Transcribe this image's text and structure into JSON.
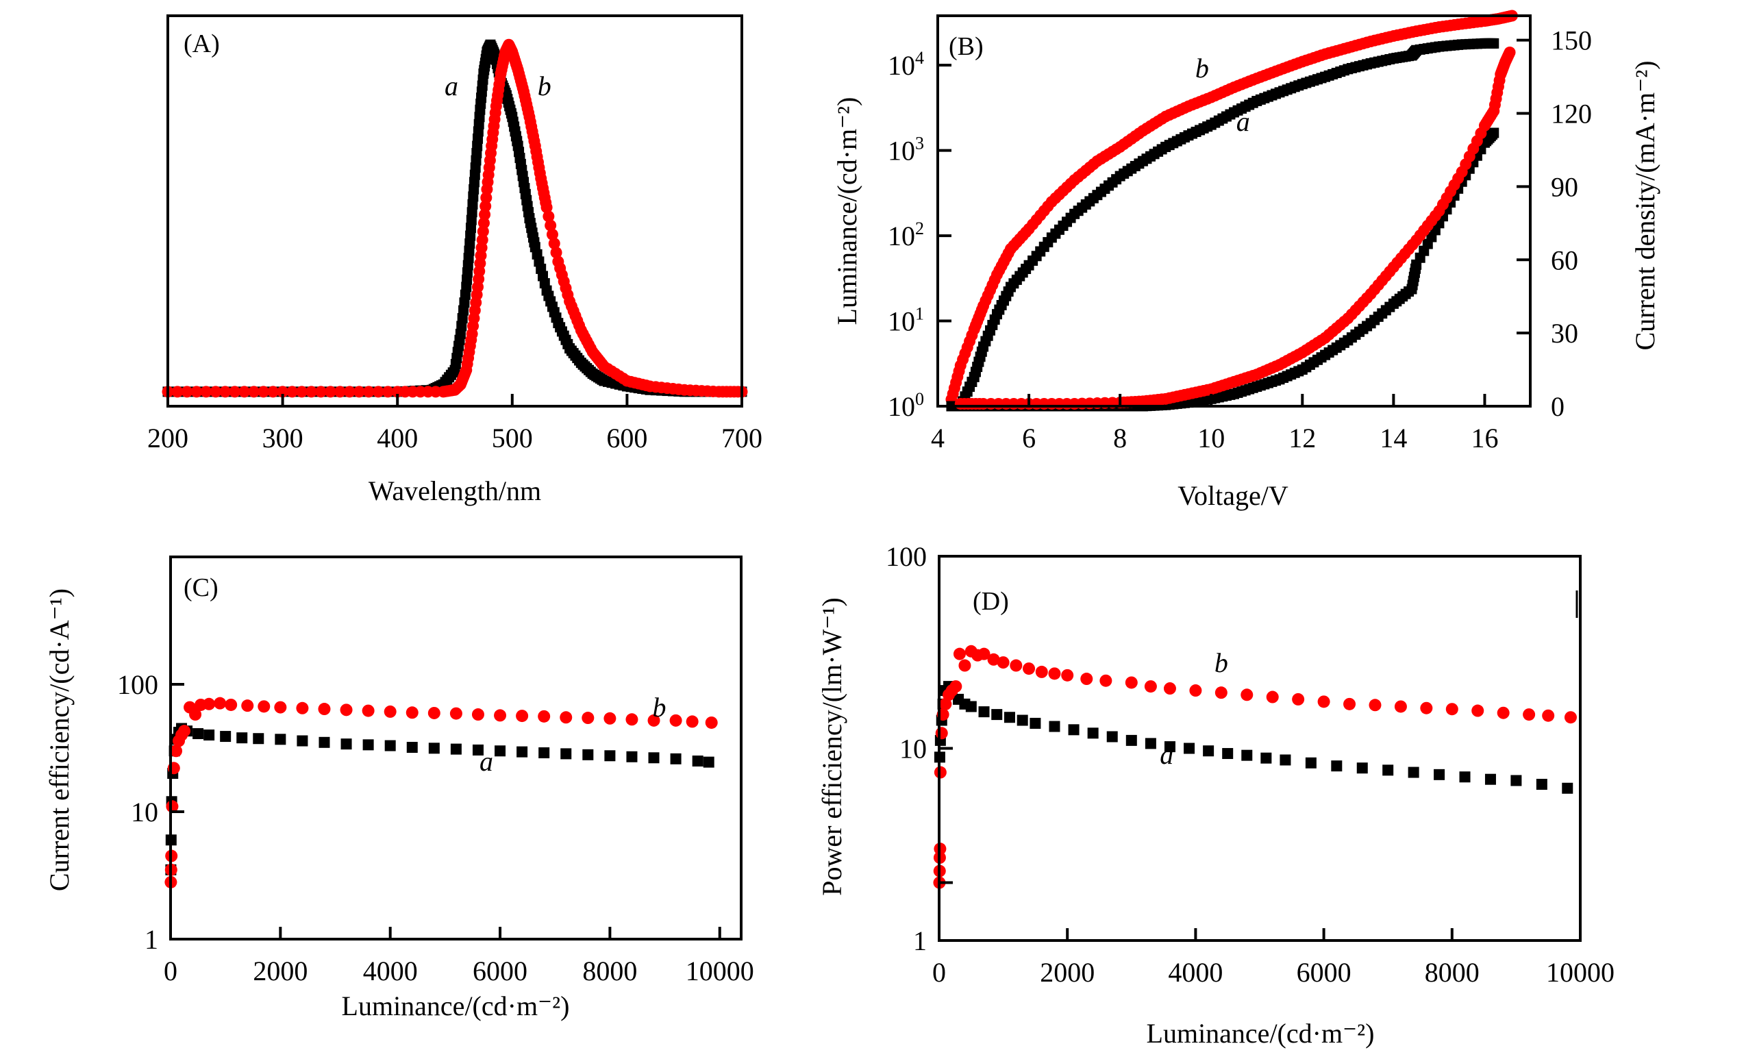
{
  "colors": {
    "series_a": "#000000",
    "series_b": "#ff0000",
    "axis": "#000000",
    "background": "#ffffff"
  },
  "chart_data": [
    {
      "id": "A",
      "type": "scatter",
      "panel_label": "(A)",
      "title": "",
      "xlabel": "Wavelength/nm",
      "ylabel": "",
      "xlim": [
        200,
        700
      ],
      "ylim": [
        0,
        1.08
      ],
      "yscale": "linear",
      "xticks": [
        200,
        300,
        400,
        500,
        600,
        700
      ],
      "xtick_labels": [
        "200",
        "300",
        "400",
        "500",
        "600",
        "700"
      ],
      "yticks": [],
      "grid": false,
      "legend": "none (inline labels)",
      "series": [
        {
          "name": "a",
          "marker": "square",
          "color": "#000000",
          "label_at": [
            447,
            0.86
          ],
          "x": [
            200,
            250,
            300,
            350,
            400,
            430,
            440,
            450,
            455,
            460,
            463,
            466,
            469,
            472,
            475,
            478,
            481,
            485,
            490,
            495,
            500,
            505,
            510,
            515,
            520,
            530,
            540,
            550,
            560,
            570,
            580,
            600,
            620,
            650,
            680,
            700
          ],
          "y": [
            0.04,
            0.04,
            0.04,
            0.04,
            0.04,
            0.045,
            0.06,
            0.1,
            0.2,
            0.33,
            0.45,
            0.58,
            0.7,
            0.82,
            0.92,
            0.98,
            1.0,
            0.97,
            0.9,
            0.86,
            0.8,
            0.72,
            0.62,
            0.52,
            0.44,
            0.32,
            0.23,
            0.16,
            0.12,
            0.09,
            0.07,
            0.055,
            0.045,
            0.04,
            0.04,
            0.04
          ]
        },
        {
          "name": "b",
          "marker": "circle",
          "color": "#ff0000",
          "label_at": [
            528,
            0.86
          ],
          "x": [
            200,
            250,
            300,
            350,
            400,
            440,
            450,
            455,
            460,
            465,
            470,
            474,
            478,
            482,
            486,
            490,
            494,
            497,
            500,
            505,
            510,
            515,
            520,
            525,
            530,
            540,
            550,
            560,
            570,
            580,
            600,
            620,
            650,
            680,
            700
          ],
          "y": [
            0.04,
            0.04,
            0.04,
            0.04,
            0.04,
            0.04,
            0.045,
            0.06,
            0.1,
            0.2,
            0.33,
            0.46,
            0.6,
            0.72,
            0.83,
            0.92,
            0.98,
            1.0,
            0.98,
            0.93,
            0.87,
            0.8,
            0.72,
            0.63,
            0.55,
            0.4,
            0.29,
            0.21,
            0.15,
            0.11,
            0.07,
            0.055,
            0.045,
            0.04,
            0.04
          ]
        }
      ]
    },
    {
      "id": "B",
      "type": "scatter",
      "panel_label": "(B)",
      "title": "",
      "xlabel": "Voltage/V",
      "ylabel": "Luminance/(cd·m⁻²)",
      "y2label": "Current density/(mA·m⁻²)",
      "xlim": [
        4,
        17
      ],
      "ylim": [
        1,
        38000
      ],
      "yscale": "log",
      "y2lim": [
        0,
        160
      ],
      "xticks": [
        4,
        6,
        8,
        10,
        12,
        14,
        16
      ],
      "xtick_labels": [
        "4",
        "6",
        "8",
        "10",
        "12",
        "14",
        "16"
      ],
      "yticks": [
        1,
        10,
        100,
        1000,
        10000
      ],
      "ytick_labels": [
        [
          "10",
          "0"
        ],
        [
          "10",
          "1"
        ],
        [
          "10",
          "2"
        ],
        [
          "10",
          "3"
        ],
        [
          "10",
          "4"
        ]
      ],
      "y2ticks": [
        0,
        30,
        60,
        90,
        120,
        150
      ],
      "y2tick_labels": [
        "0",
        "30",
        "60",
        "90",
        "120",
        "150"
      ],
      "grid": false,
      "legend": "none (inline labels)",
      "series": [
        {
          "name": "a",
          "quantity": "luminance",
          "axis": "left",
          "marker": "square",
          "color": "#000000",
          "label_at": [
            10.7,
            1700
          ],
          "x": [
            4.5,
            4.8,
            5.0,
            5.3,
            5.6,
            6.0,
            6.5,
            7.0,
            7.5,
            8.0,
            8.5,
            9.0,
            9.5,
            10.0,
            10.5,
            11.0,
            11.5,
            12.0,
            12.5,
            13.0,
            13.5,
            14.0,
            14.4,
            14.5,
            15.0,
            15.5,
            16.0,
            16.2
          ],
          "y": [
            1,
            2.2,
            5,
            12,
            25,
            45,
            95,
            180,
            300,
            500,
            750,
            1100,
            1500,
            2000,
            2800,
            3800,
            4800,
            6000,
            7300,
            9000,
            10500,
            12000,
            13000,
            15000,
            16500,
            17500,
            18000,
            18000
          ]
        },
        {
          "name": "b",
          "quantity": "luminance",
          "axis": "left",
          "marker": "circle",
          "color": "#ff0000",
          "label_at": [
            9.8,
            7200
          ],
          "x": [
            4.3,
            4.5,
            4.8,
            5.0,
            5.3,
            5.6,
            6.0,
            6.5,
            7.0,
            7.5,
            8.0,
            8.5,
            9.0,
            9.5,
            10.0,
            10.5,
            11.0,
            11.5,
            12.0,
            12.5,
            13.0,
            13.5,
            14.0,
            14.5,
            15.0,
            15.5,
            16.0,
            16.3,
            16.6
          ],
          "y": [
            1.2,
            3,
            8,
            15,
            35,
            70,
            120,
            250,
            450,
            750,
            1100,
            1700,
            2500,
            3300,
            4200,
            5500,
            7000,
            8800,
            11000,
            13500,
            16000,
            19000,
            22000,
            25000,
            28000,
            30500,
            33000,
            35000,
            38000
          ]
        },
        {
          "name": "a",
          "quantity": "current_density",
          "axis": "right",
          "marker": "square",
          "color": "#000000",
          "x": [
            4.3,
            5,
            6,
            7,
            8,
            8.5,
            9,
            9.5,
            10,
            10.5,
            11,
            11.5,
            12,
            12.5,
            13,
            13.5,
            14,
            14.4,
            14.5,
            15,
            15.5,
            16,
            16.2
          ],
          "y": [
            0,
            0,
            0,
            0,
            0,
            0,
            0.5,
            1.5,
            3,
            5,
            8,
            11,
            15,
            21,
            27,
            34,
            42,
            48,
            58,
            75,
            92,
            108,
            112
          ]
        },
        {
          "name": "b",
          "quantity": "current_density",
          "axis": "right",
          "marker": "circle",
          "color": "#ff0000",
          "x": [
            4.5,
            5,
            6,
            7,
            8,
            8.5,
            9,
            9.5,
            10,
            10.5,
            11,
            11.5,
            12,
            12.5,
            13,
            13.5,
            14,
            14.5,
            15,
            15.5,
            16,
            16.2,
            16.35,
            16.45,
            16.55
          ],
          "y": [
            1,
            1,
            1,
            1,
            1.5,
            2,
            3,
            5,
            7,
            10,
            13,
            17,
            22,
            28,
            36,
            46,
            57,
            68,
            80,
            96,
            115,
            121,
            136,
            141,
            145
          ]
        }
      ]
    },
    {
      "id": "C",
      "type": "scatter",
      "panel_label": "(C)",
      "title": "",
      "xlabel": "Luminance/(cd·m⁻²)",
      "ylabel": "Current efficiency/(cd·A⁻¹)",
      "xlim": [
        0,
        10390
      ],
      "ylim": [
        1,
        1000
      ],
      "yscale": "log",
      "xticks": [
        0,
        2000,
        4000,
        6000,
        8000,
        10000
      ],
      "xtick_labels": [
        "0",
        "2000",
        "4000",
        "6000",
        "8000",
        "10000"
      ],
      "yticks": [
        1,
        10,
        100
      ],
      "ytick_labels": [
        "1",
        "10",
        "100"
      ],
      "grid": false,
      "legend": "none (inline labels)",
      "series": [
        {
          "name": "a",
          "marker": "square",
          "color": "#000000",
          "label_at": [
            5750,
            21
          ],
          "x": [
            5,
            10,
            20,
            40,
            70,
            100,
            150,
            200,
            300,
            500,
            700,
            1000,
            1300,
            1600,
            2000,
            2400,
            2800,
            3200,
            3600,
            4000,
            4400,
            4800,
            5200,
            5600,
            6000,
            6400,
            6800,
            7200,
            7600,
            8000,
            8400,
            8800,
            9200,
            9600,
            9800
          ],
          "y": [
            3.5,
            6,
            12,
            20,
            30,
            37,
            42,
            45,
            43,
            41,
            40,
            39,
            38,
            37.5,
            37,
            36,
            35,
            34,
            33.5,
            33,
            32,
            31.5,
            31,
            30.5,
            30,
            29.5,
            29,
            28.5,
            28,
            27.5,
            27,
            26.5,
            26,
            25,
            24.5
          ]
        },
        {
          "name": "b",
          "marker": "circle",
          "color": "#ff0000",
          "label_at": [
            8900,
            56
          ],
          "x": [
            5,
            10,
            15,
            30,
            60,
            100,
            150,
            200,
            250,
            350,
            450,
            550,
            700,
            900,
            1100,
            1400,
            1700,
            2000,
            2400,
            2800,
            3200,
            3600,
            4000,
            4400,
            4800,
            5200,
            5600,
            6000,
            6400,
            6800,
            7200,
            7600,
            8000,
            8400,
            8800,
            9200,
            9500,
            9850
          ],
          "y": [
            2.8,
            3.5,
            4.5,
            11,
            22,
            30,
            36,
            40,
            43,
            66,
            58,
            69,
            70,
            71,
            69,
            68,
            67,
            66,
            65,
            64,
            63,
            62,
            61,
            60,
            59.5,
            59,
            58,
            57,
            56.5,
            56,
            55,
            54.5,
            54,
            53,
            52,
            52,
            51,
            50
          ]
        }
      ]
    },
    {
      "id": "D",
      "type": "scatter",
      "panel_label": "(D)",
      "title": "",
      "xlabel": "Luminance/(cd·m⁻²)",
      "ylabel": "Power efficiency/(lm·W⁻¹)",
      "xlim": [
        0,
        10000
      ],
      "ylim": [
        1,
        100
      ],
      "yscale": "log",
      "xticks": [
        0,
        2000,
        4000,
        6000,
        8000,
        10000
      ],
      "xtick_labels": [
        "0",
        "2000",
        "4000",
        "6000",
        "8000",
        "10000"
      ],
      "yticks": [
        1,
        2,
        10,
        100
      ],
      "ytick_labels": [
        "1",
        "",
        "10",
        "100"
      ],
      "grid": false,
      "legend": "none (inline labels)",
      "series": [
        {
          "name": "a",
          "marker": "square",
          "color": "#000000",
          "label_at": [
            3550,
            8.3
          ],
          "x": [
            10,
            20,
            40,
            60,
            100,
            150,
            200,
            300,
            400,
            500,
            700,
            900,
            1100,
            1300,
            1500,
            1800,
            2100,
            2400,
            2700,
            3000,
            3300,
            3600,
            3900,
            4200,
            4500,
            4800,
            5100,
            5400,
            5800,
            6200,
            6600,
            7000,
            7400,
            7800,
            8200,
            8600,
            9000,
            9400,
            9800
          ],
          "y": [
            9,
            11,
            14,
            17,
            20,
            21,
            20,
            18,
            17,
            16.5,
            15.5,
            15,
            14.5,
            14,
            13.5,
            13,
            12.5,
            12,
            11.5,
            11,
            10.6,
            10.2,
            10,
            9.7,
            9.4,
            9.2,
            8.9,
            8.7,
            8.4,
            8.1,
            7.9,
            7.7,
            7.5,
            7.3,
            7.1,
            6.9,
            6.8,
            6.5,
            6.2
          ]
        },
        {
          "name": "b",
          "marker": "circle",
          "color": "#ff0000",
          "label_at": [
            4400,
            25
          ],
          "x": [
            5,
            8,
            10,
            15,
            20,
            40,
            60,
            100,
            150,
            200,
            260,
            320,
            400,
            500,
            600,
            700,
            850,
            1000,
            1200,
            1400,
            1600,
            1800,
            2000,
            2300,
            2600,
            3000,
            3300,
            3600,
            4000,
            4400,
            4800,
            5200,
            5600,
            6000,
            6400,
            6800,
            7200,
            7600,
            8000,
            8400,
            8800,
            9200,
            9500,
            9850
          ],
          "y": [
            2,
            2.3,
            2.7,
            3,
            7.5,
            12,
            15,
            17,
            19,
            20,
            21,
            31,
            27,
            32,
            30.5,
            31,
            29,
            28,
            27,
            26,
            25,
            24.5,
            24,
            23,
            22.5,
            22,
            21,
            20.5,
            20,
            19.5,
            19,
            18.5,
            18,
            17.5,
            17,
            16.8,
            16.5,
            16.2,
            16,
            15.7,
            15.3,
            15,
            14.8,
            14.5
          ]
        }
      ]
    }
  ]
}
